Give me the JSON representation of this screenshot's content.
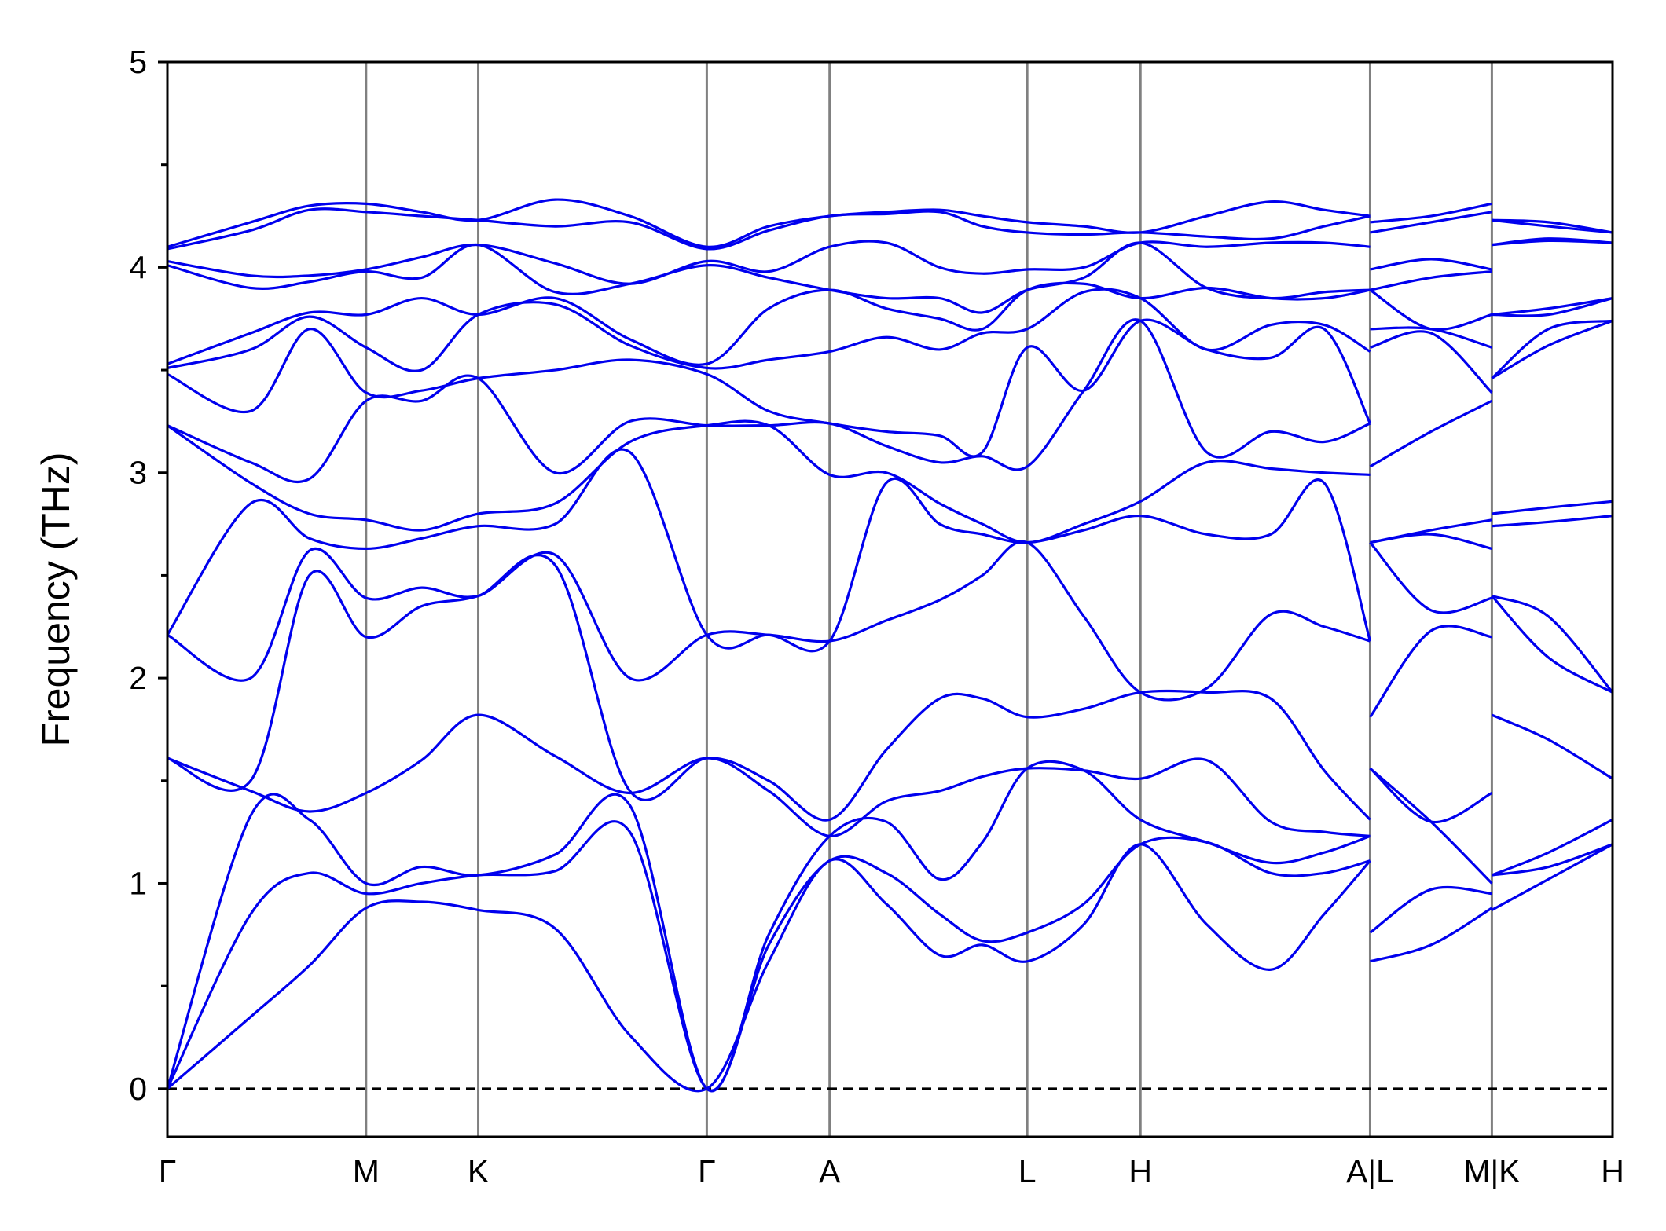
{
  "chart_data": {
    "type": "line",
    "ylabel": "Frequency (THz)",
    "color": "#0000ee",
    "xlim": [
      0,
      13.53
    ],
    "ylim": [
      -0.234,
      5
    ],
    "yticks": [
      0,
      1,
      2,
      3,
      4,
      5
    ],
    "yminor": [
      0.5,
      1.5,
      2.5,
      3.5,
      4.5
    ],
    "xticks": [
      {
        "value": 0,
        "label": "Γ"
      },
      {
        "value": 1.86,
        "label": "M"
      },
      {
        "value": 2.91,
        "label": "K"
      },
      {
        "value": 5.05,
        "label": "Γ"
      },
      {
        "value": 6.2,
        "label": "A"
      },
      {
        "value": 8.05,
        "label": "L"
      },
      {
        "value": 9.11,
        "label": "H"
      },
      {
        "value": 11.26,
        "label": "A|L"
      },
      {
        "value": 12.4,
        "label": "M|K"
      },
      {
        "value": 13.53,
        "label": "H"
      }
    ],
    "zero_line": true,
    "x": [
      0,
      0.78,
      1.33,
      1.86,
      2.38,
      2.91,
      3.63,
      4.33,
      5.05,
      5.63,
      6.2,
      6.73,
      7.23,
      7.63,
      8.05,
      8.58,
      9.11,
      9.73,
      10.33,
      10.83,
      11.26,
      11.26,
      11.26,
      11.83,
      12.4,
      12.4,
      12.4,
      12.93,
      13.53
    ],
    "series": [
      {
        "values": [
          0,
          0.35,
          0.6,
          0.88,
          0.91,
          0.87,
          0.78,
          0.26,
          0,
          0.62,
          1.11,
          0.9,
          0.65,
          0.7,
          0.62,
          0.8,
          1.19,
          0.8,
          0.58,
          0.85,
          1.11,
          null,
          0.62,
          0.7,
          0.88,
          null,
          0.87,
          1.02,
          1.19
        ]
      },
      {
        "values": [
          0,
          0.85,
          1.05,
          0.95,
          1.0,
          1.04,
          1.06,
          1.25,
          0,
          0.7,
          1.11,
          1.05,
          0.85,
          0.72,
          0.76,
          0.9,
          1.19,
          1.2,
          1.05,
          1.05,
          1.11,
          null,
          0.76,
          0.97,
          0.95,
          null,
          1.04,
          1.08,
          1.19
        ]
      },
      {
        "values": [
          0,
          1.33,
          1.31,
          1.0,
          1.08,
          1.04,
          1.14,
          1.38,
          0,
          0.75,
          1.23,
          1.3,
          1.02,
          1.2,
          1.56,
          1.55,
          1.31,
          1.2,
          1.1,
          1.15,
          1.23,
          null,
          1.56,
          1.3,
          1.0,
          null,
          1.04,
          1.15,
          1.31
        ]
      },
      {
        "values": [
          1.61,
          1.45,
          1.35,
          1.44,
          1.6,
          1.82,
          1.62,
          1.44,
          1.61,
          1.45,
          1.23,
          1.4,
          1.45,
          1.52,
          1.56,
          1.55,
          1.51,
          1.6,
          1.3,
          1.25,
          1.23,
          null,
          1.56,
          1.3,
          1.44,
          null,
          1.82,
          1.7,
          1.51
        ]
      },
      {
        "values": [
          1.61,
          1.5,
          2.5,
          2.2,
          2.35,
          2.4,
          2.55,
          1.45,
          1.61,
          1.5,
          1.31,
          1.65,
          1.9,
          1.9,
          1.81,
          1.85,
          1.93,
          1.93,
          1.9,
          1.55,
          1.31,
          null,
          1.81,
          2.23,
          2.2,
          null,
          2.4,
          2.1,
          1.93
        ]
      },
      {
        "values": [
          2.21,
          2.0,
          2.62,
          2.39,
          2.44,
          2.4,
          2.6,
          2.0,
          2.21,
          2.21,
          2.18,
          2.28,
          2.38,
          2.5,
          2.66,
          2.3,
          1.93,
          1.95,
          2.31,
          2.25,
          2.18,
          null,
          2.66,
          2.33,
          2.39,
          null,
          2.4,
          2.3,
          1.93
        ]
      },
      {
        "values": [
          2.21,
          2.85,
          2.68,
          2.63,
          2.68,
          2.74,
          2.75,
          3.1,
          2.21,
          2.21,
          2.18,
          2.95,
          2.75,
          2.7,
          2.66,
          2.72,
          2.79,
          2.7,
          2.7,
          2.95,
          2.18,
          null,
          2.66,
          2.7,
          2.63,
          null,
          2.74,
          2.76,
          2.79
        ]
      },
      {
        "values": [
          3.23,
          2.95,
          2.8,
          2.77,
          2.72,
          2.8,
          2.85,
          3.15,
          3.23,
          3.23,
          2.99,
          3.0,
          2.85,
          2.75,
          2.66,
          2.75,
          2.86,
          3.05,
          3.02,
          3.0,
          2.99,
          null,
          2.66,
          2.72,
          2.77,
          null,
          2.8,
          2.83,
          2.86
        ]
      },
      {
        "values": [
          3.23,
          3.05,
          2.97,
          3.35,
          3.35,
          3.46,
          3.0,
          3.25,
          3.23,
          3.23,
          3.24,
          3.13,
          3.05,
          3.08,
          3.03,
          3.4,
          3.74,
          3.1,
          3.2,
          3.15,
          3.24,
          null,
          3.03,
          3.2,
          3.35,
          null,
          3.46,
          3.62,
          3.74
        ]
      },
      {
        "values": [
          3.48,
          3.3,
          3.7,
          3.39,
          3.4,
          3.46,
          3.5,
          3.55,
          3.48,
          3.3,
          3.24,
          3.2,
          3.18,
          3.1,
          3.61,
          3.4,
          3.74,
          3.6,
          3.56,
          3.7,
          3.24,
          null,
          3.61,
          3.68,
          3.39,
          null,
          3.46,
          3.7,
          3.74
        ]
      },
      {
        "values": [
          3.51,
          3.6,
          3.76,
          3.61,
          3.5,
          3.77,
          3.82,
          3.62,
          3.51,
          3.55,
          3.59,
          3.66,
          3.6,
          3.68,
          3.7,
          3.88,
          3.85,
          3.6,
          3.72,
          3.72,
          3.59,
          null,
          3.7,
          3.7,
          3.61,
          null,
          3.77,
          3.77,
          3.85
        ]
      },
      {
        "values": [
          3.53,
          3.68,
          3.78,
          3.77,
          3.85,
          3.77,
          3.85,
          3.65,
          3.53,
          3.8,
          3.89,
          3.8,
          3.75,
          3.7,
          3.89,
          3.92,
          3.85,
          3.9,
          3.85,
          3.85,
          3.89,
          null,
          3.89,
          3.7,
          3.77,
          null,
          3.77,
          3.8,
          3.85
        ]
      },
      {
        "values": [
          4.01,
          3.9,
          3.93,
          3.98,
          3.95,
          4.11,
          3.88,
          3.92,
          4.01,
          3.95,
          3.89,
          3.85,
          3.85,
          3.78,
          3.89,
          3.95,
          4.12,
          3.9,
          3.85,
          3.88,
          3.89,
          null,
          3.89,
          3.95,
          3.98,
          null,
          4.11,
          4.13,
          4.12
        ]
      },
      {
        "values": [
          4.03,
          3.96,
          3.96,
          3.99,
          4.05,
          4.11,
          4.02,
          3.92,
          4.03,
          3.98,
          4.1,
          4.12,
          4.0,
          3.97,
          3.99,
          4.0,
          4.12,
          4.1,
          4.12,
          4.12,
          4.1,
          null,
          3.99,
          4.04,
          3.99,
          null,
          4.11,
          4.14,
          4.12
        ]
      },
      {
        "values": [
          4.09,
          4.18,
          4.28,
          4.27,
          4.25,
          4.23,
          4.2,
          4.22,
          4.09,
          4.18,
          4.25,
          4.26,
          4.27,
          4.2,
          4.17,
          4.16,
          4.17,
          4.15,
          4.14,
          4.2,
          4.25,
          null,
          4.17,
          4.22,
          4.27,
          null,
          4.23,
          4.2,
          4.17
        ]
      },
      {
        "values": [
          4.1,
          4.22,
          4.3,
          4.31,
          4.27,
          4.23,
          4.33,
          4.25,
          4.1,
          4.2,
          4.25,
          4.27,
          4.28,
          4.25,
          4.22,
          4.2,
          4.17,
          4.25,
          4.32,
          4.28,
          4.25,
          null,
          4.22,
          4.25,
          4.31,
          null,
          4.23,
          4.22,
          4.17
        ]
      }
    ]
  }
}
